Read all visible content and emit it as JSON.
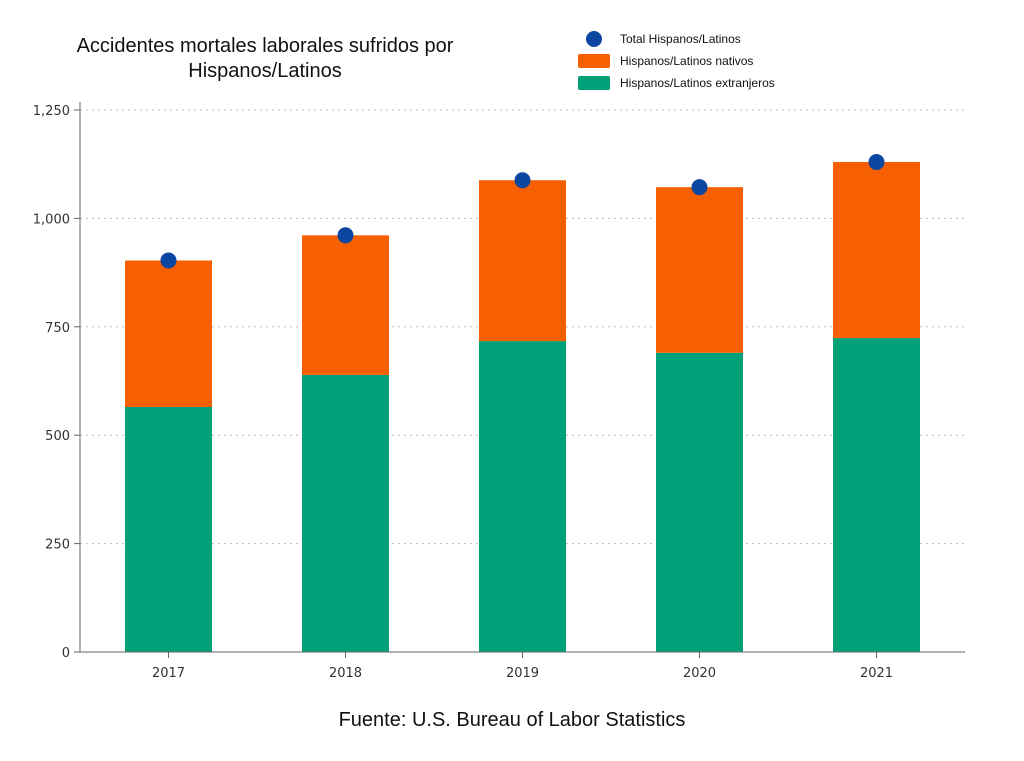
{
  "chart_data": {
    "type": "bar",
    "stacked": true,
    "title": "Accidentes mortales laborales sufridos por Hispanos/Latinos",
    "source": "Fuente: U.S. Bureau of Labor Statistics",
    "categories": [
      "2017",
      "2018",
      "2019",
      "2020",
      "2021"
    ],
    "series": [
      {
        "name": "Hispanos/Latinos extranjeros",
        "type": "bar",
        "color": "#00a078",
        "values": [
          565,
          639,
          717,
          690,
          724
        ]
      },
      {
        "name": "Hispanos/Latinos nativos",
        "type": "bar",
        "color": "#f76000",
        "values": [
          338,
          322,
          371,
          382,
          406
        ]
      },
      {
        "name": "Total Hispanos/Latinos",
        "type": "scatter",
        "color": "#0b47a1",
        "values": [
          903,
          961,
          1088,
          1072,
          1130
        ]
      }
    ],
    "ylim": [
      0,
      1250
    ],
    "yticks": [
      "0",
      "250",
      "500",
      "750",
      "1,000",
      "1,250"
    ],
    "ytick_values": [
      0,
      250,
      500,
      750,
      1000,
      1250
    ],
    "grid": true,
    "legend": "top-right"
  }
}
